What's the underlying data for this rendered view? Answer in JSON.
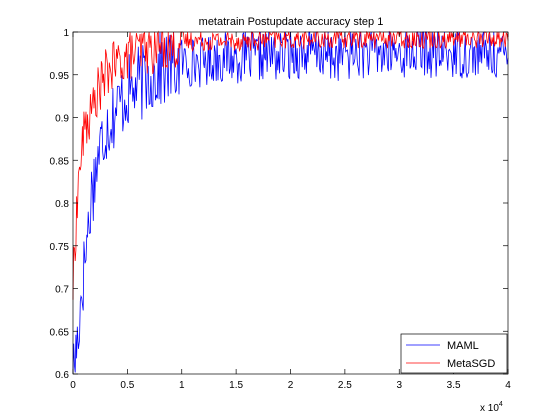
{
  "chart_data": {
    "type": "line",
    "title": "metatrain Postupdate accuracy step 1",
    "xlabel": "",
    "ylabel": "",
    "x_multiplier_label": "x 10",
    "x_multiplier_exponent": "4",
    "xlim": [
      0,
      4
    ],
    "ylim": [
      0.6,
      1.0
    ],
    "x_ticks": [
      "0",
      "0.5",
      "1",
      "1.5",
      "2",
      "2.5",
      "3",
      "3.5",
      "4"
    ],
    "y_ticks": [
      "0.6",
      "0.65",
      "0.7",
      "0.75",
      "0.8",
      "0.85",
      "0.9",
      "0.95",
      "1"
    ],
    "grid": false,
    "legend_position": "bottom-right",
    "series": [
      {
        "name": "MAML",
        "color": "#0000ff",
        "x": [
          0,
          0.02,
          0.04,
          0.06,
          0.08,
          0.1,
          0.12,
          0.14,
          0.16,
          0.18,
          0.2,
          0.22,
          0.24,
          0.26,
          0.28,
          0.3,
          0.35,
          0.4,
          0.45,
          0.5,
          0.55,
          0.6,
          0.65,
          0.7,
          0.75,
          0.8,
          0.85,
          0.9,
          0.95,
          1.0,
          1.1,
          1.2,
          1.3,
          1.4,
          1.5,
          1.6,
          1.7,
          1.8,
          1.9,
          2.0,
          2.1,
          2.2,
          2.3,
          2.4,
          2.5,
          2.6,
          2.7,
          2.8,
          2.9,
          3.0,
          3.1,
          3.2,
          3.3,
          3.4,
          3.5,
          3.6,
          3.7,
          3.8,
          3.9,
          3.95,
          4.0
        ],
        "y": [
          0.6,
          0.62,
          0.64,
          0.67,
          0.7,
          0.72,
          0.75,
          0.77,
          0.8,
          0.82,
          0.83,
          0.85,
          0.86,
          0.87,
          0.88,
          0.89,
          0.9,
          0.91,
          0.92,
          0.93,
          0.93,
          0.94,
          0.94,
          0.95,
          0.95,
          0.955,
          0.955,
          0.96,
          0.96,
          0.965,
          0.965,
          0.965,
          0.97,
          0.97,
          0.97,
          0.97,
          0.97,
          0.975,
          0.97,
          0.975,
          0.975,
          0.975,
          0.975,
          0.97,
          0.975,
          0.975,
          0.975,
          0.975,
          0.975,
          0.975,
          0.975,
          0.98,
          0.975,
          0.975,
          0.975,
          0.975,
          0.975,
          0.975,
          0.975,
          0.97,
          0.97
        ]
      },
      {
        "name": "MetaSGD",
        "color": "#ff0000",
        "x": [
          0,
          0.02,
          0.04,
          0.06,
          0.08,
          0.1,
          0.12,
          0.14,
          0.16,
          0.18,
          0.2,
          0.22,
          0.24,
          0.26,
          0.28,
          0.3,
          0.35,
          0.4,
          0.45,
          0.5,
          0.55,
          0.6,
          0.65,
          0.7,
          0.75,
          0.8,
          0.85,
          0.9,
          0.95,
          1.0,
          1.1,
          1.2,
          1.3,
          1.4,
          1.5,
          1.6,
          1.7,
          1.8,
          1.9,
          2.0,
          2.1,
          2.2,
          2.3,
          2.4,
          2.5,
          2.6,
          2.7,
          2.8,
          2.9,
          3.0,
          3.1,
          3.2,
          3.3,
          3.4,
          3.5,
          3.6,
          3.7,
          3.8,
          3.9,
          3.95,
          4.0
        ],
        "y": [
          0.7,
          0.76,
          0.8,
          0.84,
          0.86,
          0.88,
          0.89,
          0.9,
          0.9,
          0.91,
          0.92,
          0.93,
          0.93,
          0.94,
          0.94,
          0.95,
          0.96,
          0.96,
          0.97,
          0.97,
          0.975,
          0.975,
          0.98,
          0.98,
          0.98,
          0.985,
          0.985,
          0.985,
          0.985,
          0.99,
          0.99,
          0.99,
          0.99,
          0.99,
          0.99,
          0.99,
          0.99,
          0.992,
          0.992,
          0.992,
          0.992,
          0.992,
          0.992,
          0.992,
          0.992,
          0.993,
          0.993,
          0.993,
          0.993,
          0.993,
          0.993,
          0.993,
          0.993,
          0.993,
          0.993,
          0.993,
          0.993,
          0.993,
          0.993,
          0.993,
          0.99
        ]
      }
    ]
  }
}
